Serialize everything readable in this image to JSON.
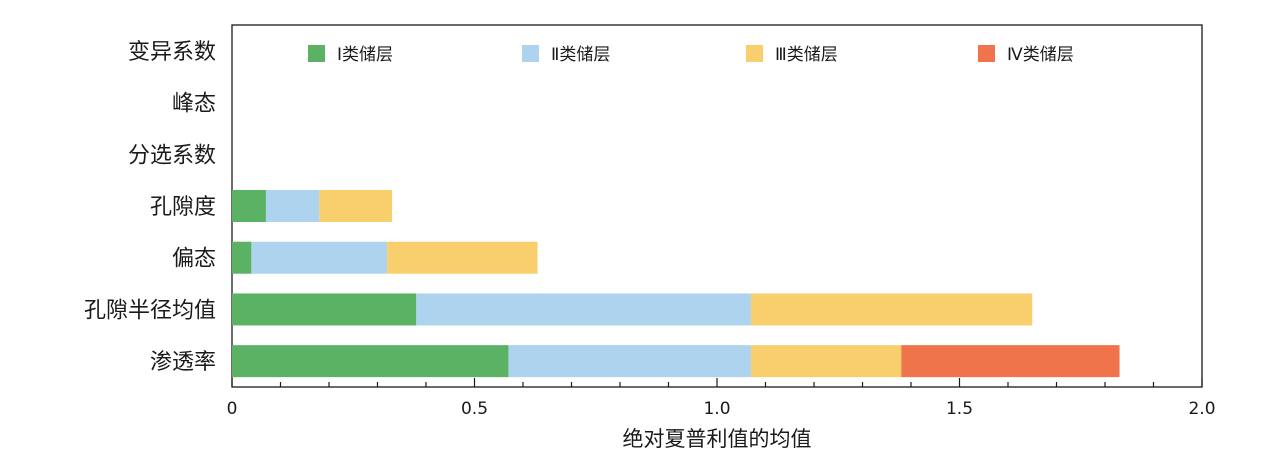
{
  "chart_data": {
    "type": "bar",
    "orientation": "horizontal",
    "stacked": true,
    "title": "",
    "xlabel": "绝对夏普利值的均值",
    "ylabel": "",
    "xlim": [
      0,
      2.0
    ],
    "x_ticks": [
      0,
      0.5,
      1.0,
      1.5,
      2.0
    ],
    "x_tick_labels": [
      "0",
      "0.5",
      "1.0",
      "1.5",
      "2.0"
    ],
    "grid": false,
    "legend_position": "top",
    "categories": [
      "变异系数",
      "峰态",
      "分选系数",
      "孔隙度",
      "偏态",
      "孔隙半径均值",
      "渗透率"
    ],
    "series": [
      {
        "name": "Ⅰ类储层",
        "color": "#5cb264",
        "values": [
          0,
          0,
          0,
          0.07,
          0.04,
          0.38,
          0.57
        ]
      },
      {
        "name": "Ⅱ类储层",
        "color": "#aed3ef",
        "values": [
          0,
          0,
          0,
          0.11,
          0.28,
          0.69,
          0.5
        ]
      },
      {
        "name": "Ⅲ类储层",
        "color": "#f9cf6d",
        "values": [
          0,
          0,
          0,
          0.15,
          0.31,
          0.58,
          0.31
        ]
      },
      {
        "name": "Ⅳ类储层",
        "color": "#ef744b",
        "values": [
          0,
          0,
          0,
          0,
          0,
          0,
          0.45
        ]
      }
    ]
  }
}
